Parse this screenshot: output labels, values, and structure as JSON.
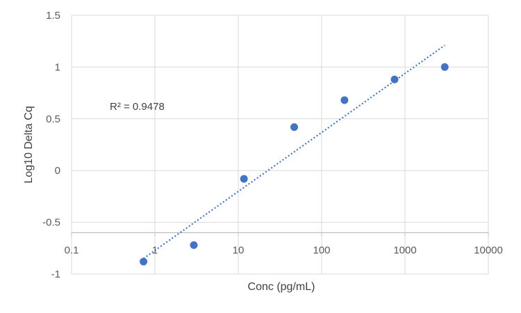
{
  "chart_data": {
    "type": "scatter",
    "xlabel": "Conc (pg/mL)",
    "ylabel": "Log10 Delta Cq",
    "x_scale": "log",
    "xlim": [
      0.1,
      10000
    ],
    "ylim": [
      -1,
      1.5
    ],
    "x_ticks": [
      "0.1",
      "1",
      "10",
      "100",
      "1000",
      "10000"
    ],
    "y_ticks": [
      "1.5",
      "1",
      "0.5",
      "0",
      "-0.5",
      "-1"
    ],
    "x_axis_crosses_y": -0.6,
    "grid": true,
    "point_color": "#4472c4",
    "trendline_color": "#4472c4",
    "annotation": "R² = 0.9478",
    "points": [
      {
        "x": 0.73,
        "y": -0.88
      },
      {
        "x": 2.93,
        "y": -0.72
      },
      {
        "x": 11.7,
        "y": -0.08
      },
      {
        "x": 46.9,
        "y": 0.42
      },
      {
        "x": 188,
        "y": 0.68
      },
      {
        "x": 750,
        "y": 0.88
      },
      {
        "x": 3000,
        "y": 1.0
      }
    ],
    "trendline": {
      "type": "linear-on-log-x",
      "x_start": 0.73,
      "x_end": 3000,
      "y_start": -0.85,
      "y_end": 1.21
    }
  }
}
